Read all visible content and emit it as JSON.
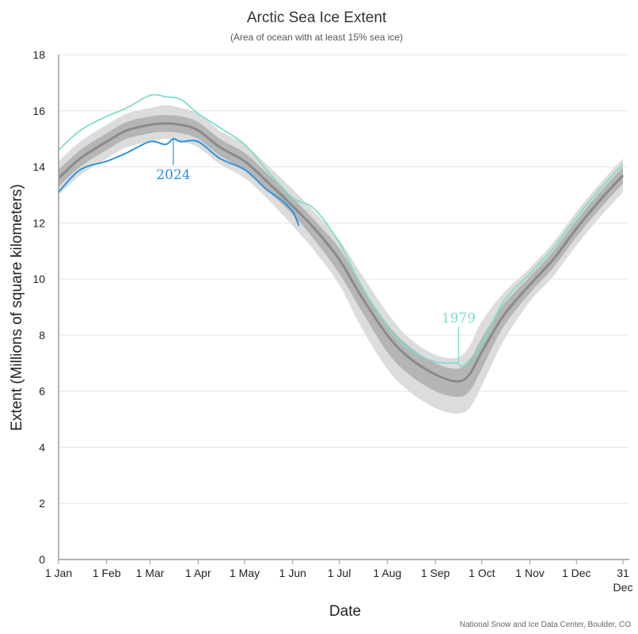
{
  "chart_data": {
    "type": "line",
    "title": "Arctic Sea Ice Extent",
    "subtitle": "(Area of ocean with at least 15% sea ice)",
    "xlabel": "Date",
    "ylabel": "Extent (Millions of square kilometers)",
    "credit": "National Snow and Ice Data Center, Boulder, CO",
    "ylim": [
      0,
      18
    ],
    "yticks": [
      0,
      2,
      4,
      6,
      8,
      10,
      12,
      14,
      16,
      18
    ],
    "xlim_day_of_year": [
      1,
      365
    ],
    "xticks": [
      {
        "day": 1,
        "label": "1 Jan"
      },
      {
        "day": 32,
        "label": "1 Feb"
      },
      {
        "day": 60,
        "label": "1 Mar"
      },
      {
        "day": 91,
        "label": "1 Apr"
      },
      {
        "day": 121,
        "label": "1 May"
      },
      {
        "day": 152,
        "label": "1 Jun"
      },
      {
        "day": 182,
        "label": "1 Jul"
      },
      {
        "day": 213,
        "label": "1 Aug"
      },
      {
        "day": 244,
        "label": "1 Sep"
      },
      {
        "day": 274,
        "label": "1 Oct"
      },
      {
        "day": 305,
        "label": "1 Nov"
      },
      {
        "day": 335,
        "label": "1 Dec"
      },
      {
        "day": 365,
        "label": "31",
        "sublabel": "Dec"
      }
    ],
    "grid": true,
    "colors": {
      "median": "#8a8a8a",
      "iqr": "#b5b5b5",
      "idr": "#dcdcdc",
      "y1979": "#7fdccf",
      "y2024": "#2a93dc"
    },
    "climatology": {
      "day": [
        1,
        15,
        32,
        45,
        60,
        70,
        80,
        91,
        105,
        121,
        135,
        152,
        166,
        182,
        196,
        213,
        227,
        244,
        258,
        266,
        274,
        288,
        305,
        320,
        335,
        350,
        365
      ],
      "median": [
        13.6,
        14.3,
        14.9,
        15.3,
        15.5,
        15.55,
        15.5,
        15.3,
        14.7,
        14.2,
        13.5,
        12.6,
        11.8,
        10.7,
        9.4,
        8.0,
        7.2,
        6.6,
        6.35,
        6.6,
        7.4,
        8.7,
        9.8,
        10.7,
        11.8,
        12.8,
        13.7
      ],
      "p25": [
        13.3,
        14.0,
        14.6,
        15.0,
        15.2,
        15.25,
        15.2,
        15.0,
        14.4,
        13.9,
        13.2,
        12.3,
        11.4,
        10.2,
        8.9,
        7.4,
        6.6,
        6.0,
        5.8,
        6.0,
        6.8,
        8.3,
        9.5,
        10.4,
        11.5,
        12.5,
        13.4
      ],
      "p75": [
        13.9,
        14.6,
        15.2,
        15.6,
        15.8,
        15.85,
        15.8,
        15.6,
        15.0,
        14.5,
        13.8,
        12.9,
        12.1,
        11.1,
        9.8,
        8.4,
        7.6,
        7.0,
        6.8,
        7.1,
        7.9,
        9.1,
        10.1,
        11.0,
        12.1,
        13.1,
        14.0
      ],
      "p10": [
        13.0,
        13.7,
        14.3,
        14.7,
        14.9,
        15.0,
        14.9,
        14.7,
        14.1,
        13.6,
        12.9,
        11.9,
        11.0,
        9.8,
        8.3,
        6.8,
        6.0,
        5.4,
        5.2,
        5.4,
        6.2,
        7.8,
        9.2,
        10.1,
        11.2,
        12.2,
        13.1
      ],
      "p90": [
        14.2,
        14.9,
        15.5,
        15.9,
        16.1,
        16.2,
        16.1,
        15.9,
        15.3,
        14.8,
        14.1,
        13.2,
        12.4,
        11.4,
        10.2,
        8.8,
        7.9,
        7.3,
        7.2,
        7.6,
        8.5,
        9.5,
        10.4,
        11.3,
        12.4,
        13.4,
        14.3
      ]
    },
    "series": [
      {
        "name": "1979",
        "day": [
          1,
          15,
          32,
          45,
          60,
          70,
          80,
          91,
          105,
          121,
          135,
          152,
          166,
          182,
          196,
          213,
          227,
          244,
          258,
          262,
          274,
          288,
          305,
          320,
          335,
          350,
          365
        ],
        "values": [
          14.6,
          15.3,
          15.8,
          16.1,
          16.55,
          16.5,
          16.4,
          15.9,
          15.4,
          14.8,
          13.9,
          12.9,
          12.5,
          11.3,
          9.8,
          8.3,
          7.5,
          7.05,
          7.0,
          6.9,
          7.7,
          9.2,
          10.2,
          11.1,
          12.2,
          13.2,
          14.1
        ],
        "label_day": 259
      },
      {
        "name": "2024",
        "day": [
          1,
          15,
          32,
          45,
          60,
          70,
          75,
          80,
          91,
          105,
          121,
          135,
          145,
          152,
          156
        ],
        "values": [
          13.1,
          13.9,
          14.2,
          14.5,
          14.9,
          14.8,
          15.0,
          14.9,
          14.9,
          14.3,
          13.9,
          13.2,
          12.8,
          12.4,
          11.9
        ],
        "label_day": 75
      }
    ]
  }
}
